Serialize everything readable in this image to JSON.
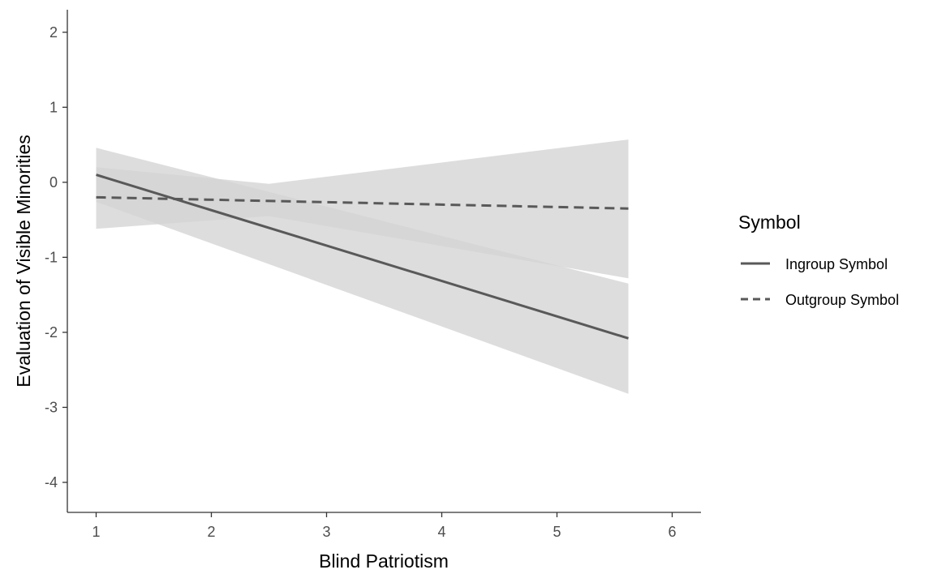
{
  "chart_data": {
    "type": "line",
    "title": "",
    "xlabel": "Blind Patriotism",
    "ylabel": "Evaluation of Visible Minorities",
    "xlim": [
      0.75,
      6.25
    ],
    "ylim": [
      -4.4,
      2.3
    ],
    "xticks": [
      1,
      2,
      3,
      4,
      5,
      6
    ],
    "yticks": [
      2,
      1,
      0,
      -1,
      -2,
      -3,
      -4
    ],
    "grid": false,
    "legend": {
      "title": "Symbol",
      "position": "right"
    },
    "series": [
      {
        "name": "Ingroup Symbol",
        "linestyle": "solid",
        "x": [
          1,
          5.62
        ],
        "y": [
          0.1,
          -2.08
        ],
        "ci_lower": [
          -0.26,
          -2.82
        ],
        "ci_upper": [
          0.46,
          -1.35
        ]
      },
      {
        "name": "Outgroup Symbol",
        "linestyle": "dashed",
        "x": [
          1,
          5.62
        ],
        "y": [
          -0.2,
          -0.35
        ],
        "ci_lower": [
          -0.62,
          -1.28
        ],
        "ci_upper": [
          0.2,
          0.57
        ],
        "ci_mid": {
          "x": 2.5,
          "lower": -0.45,
          "upper": -0.02
        }
      }
    ],
    "colors": {
      "line": "#595959",
      "band": "#d3d3d3",
      "axis": "#333333"
    }
  }
}
